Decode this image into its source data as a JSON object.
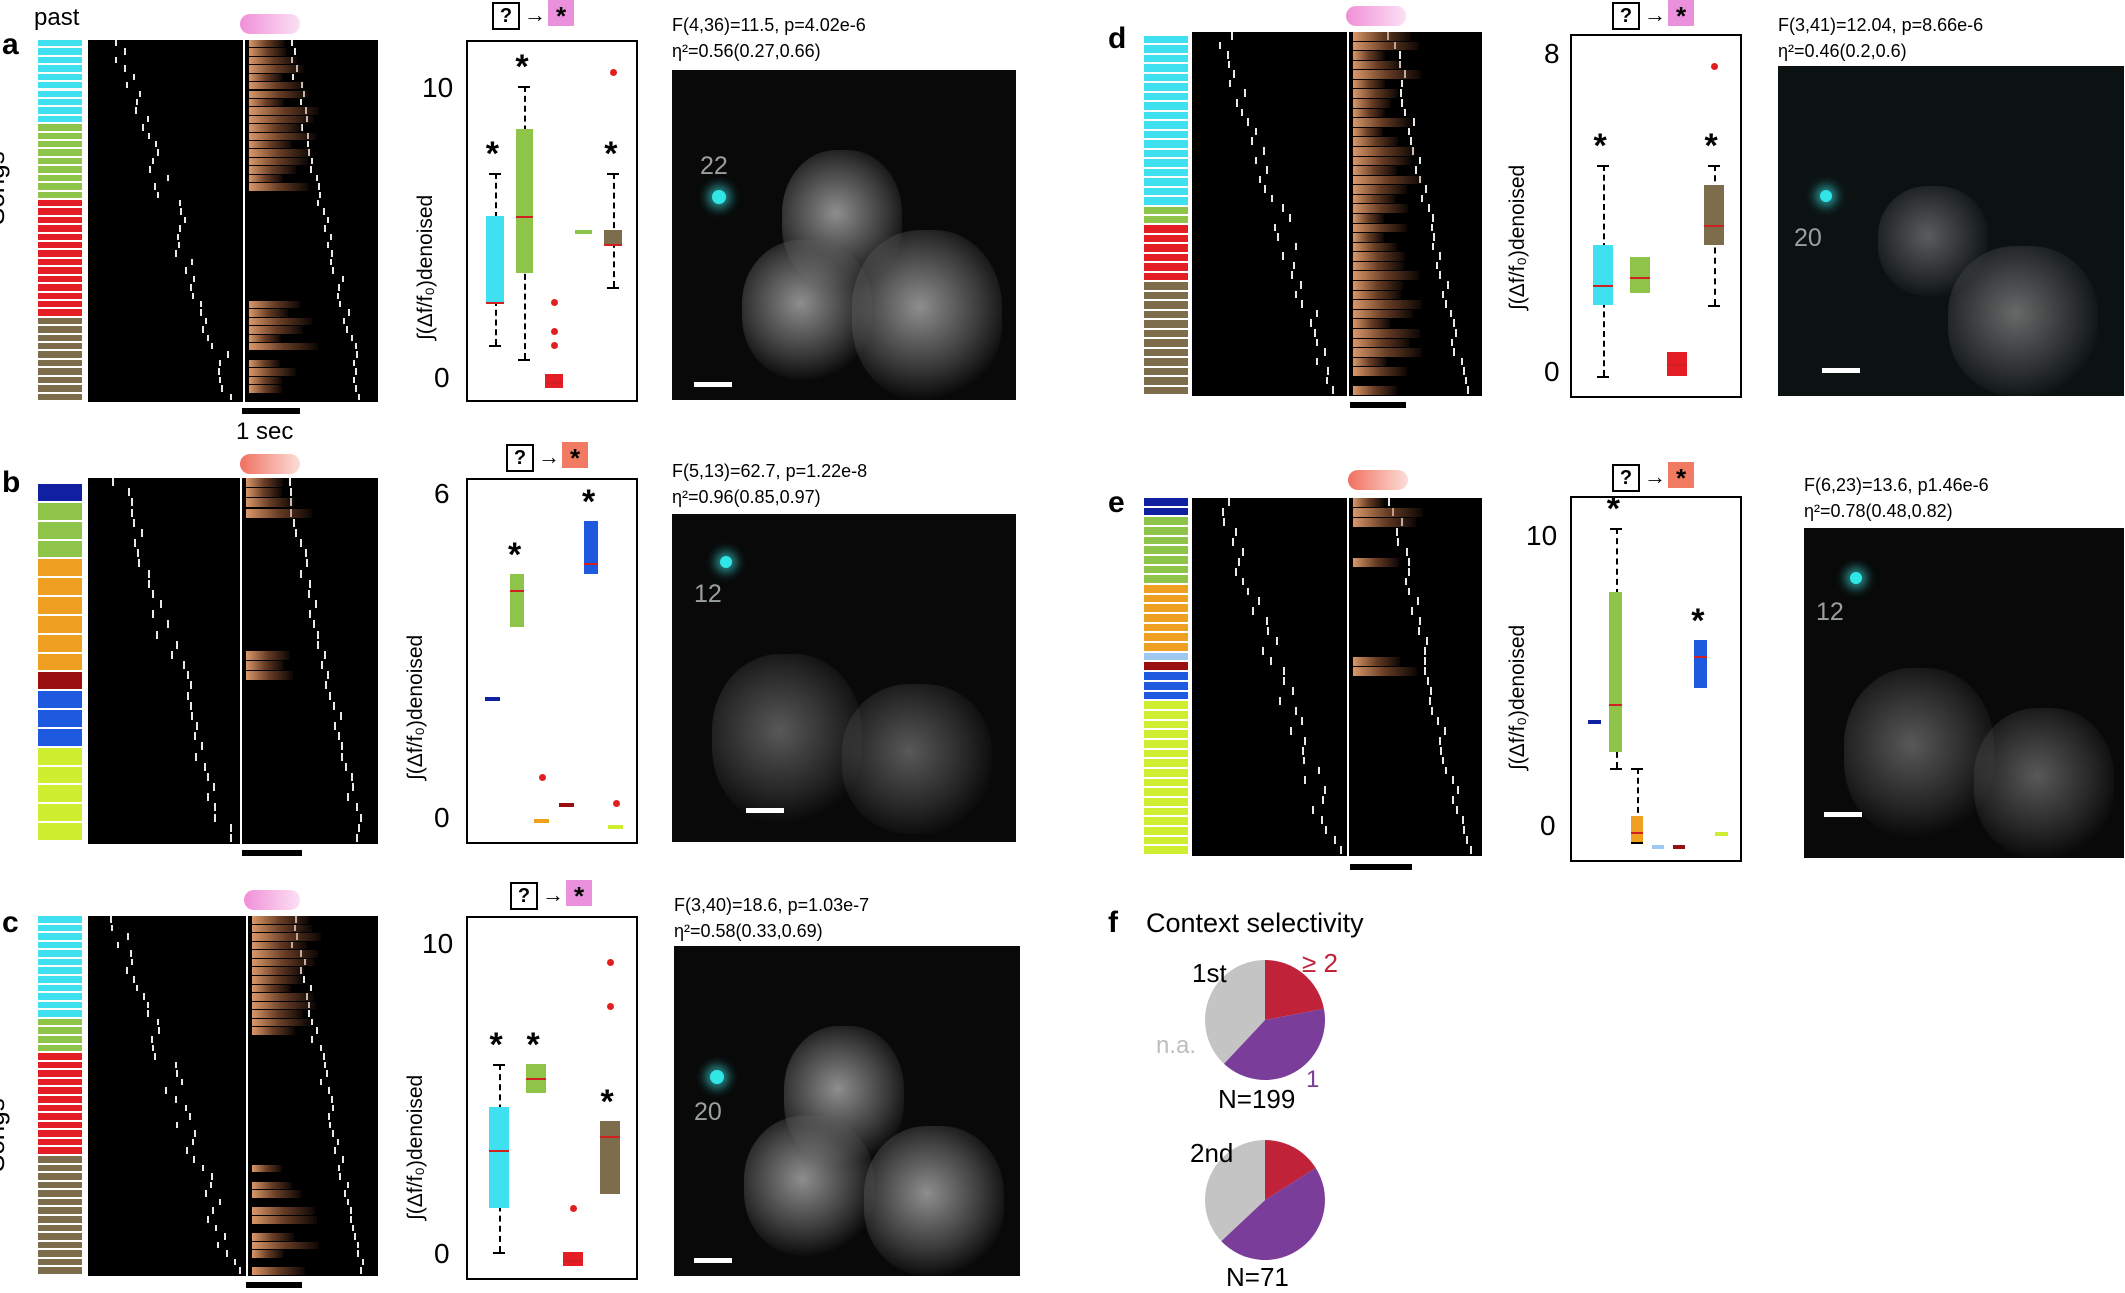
{
  "panels": {
    "a": {
      "label": "a",
      "past": "past",
      "songs": "Songs",
      "time_label": "1 sec",
      "stats1": "F(4,36)=11.5, p=4.02e-6",
      "stats2": "η²=0.56(0.27,0.66)",
      "yticks": [
        "10",
        "0"
      ],
      "ylabel": "∫(Δf/f₀)denoised",
      "cell": "22"
    },
    "b": {
      "label": "b",
      "stats1": "F(5,13)=62.7, p=1.22e-8",
      "stats2": "η²=0.96(0.85,0.97)",
      "yticks": [
        "6",
        "0"
      ],
      "ylabel": "∫(Δf/f₀)denoised",
      "cell": "12"
    },
    "c": {
      "label": "c",
      "songs": "Songs",
      "stats1": "F(3,40)=18.6, p=1.03e-7",
      "stats2": "η²=0.58(0.33,0.69)",
      "yticks": [
        "10",
        "0"
      ],
      "ylabel": "∫(Δf/f₀)denoised",
      "cell": "20"
    },
    "d": {
      "label": "d",
      "stats1": "F(3,41)=12.04, p=8.66e-6",
      "stats2": "η²=0.46(0.2,0.6)",
      "yticks": [
        "8",
        "0"
      ],
      "ylabel": "∫(Δf/f₀)denoised",
      "cell": "20"
    },
    "e": {
      "label": "e",
      "stats1": "F(6,23)=13.6, p1.46e-6",
      "stats2": "η²=0.78(0.48,0.82)",
      "yticks": [
        "10",
        "0"
      ],
      "ylabel": "∫(Δf/f₀)denoised",
      "cell": "12"
    },
    "f": {
      "label": "f",
      "title": "Context selectivity",
      "pie1_label": "1st",
      "pie2_label": "2nd",
      "ge2": "≥ 2",
      "one": "1",
      "na": "n.a.",
      "n1": "N=199",
      "n2": "N=71"
    }
  },
  "key": {
    "question": "?",
    "arrow": "→",
    "star": "*"
  },
  "colors": {
    "cyan": "#3fe0f0",
    "lightgreen": "#8fc44a",
    "red": "#e51e25",
    "brown": "#7d6d4d",
    "navy": "#1020a0",
    "orange": "#f0a020",
    "darkred": "#9a1010",
    "blue": "#1e5ae0",
    "lightblue": "#9ec8f0",
    "yellowgreen": "#d0ee30",
    "pie_red": "#c0223a",
    "pie_purple": "#7a3e9a",
    "pie_gray": "#c4c4c4"
  },
  "chart_data": [
    {
      "type": "box",
      "panel": "a",
      "ylim": [
        0,
        11
      ],
      "series": [
        {
          "color": "cyan",
          "q1": 3.0,
          "median": 3.0,
          "q3": 6.0,
          "whisk_lo": 1.5,
          "whisk_hi": 7.5,
          "significant": true
        },
        {
          "color": "lightgreen",
          "q1": 4.0,
          "median": 6.0,
          "q3": 9.0,
          "whisk_lo": 1.0,
          "whisk_hi": 10.5,
          "significant": true
        },
        {
          "color": "red",
          "q1": 0.0,
          "median": 0.2,
          "q3": 0.5,
          "outliers": [
            2,
            1.5,
            3
          ],
          "significant": false
        },
        {
          "color": "lightgreen",
          "median": 5.5,
          "significant": false
        },
        {
          "color": "brown",
          "q1": 5.0,
          "median": 5.0,
          "q3": 5.5,
          "whisk_lo": 3.5,
          "whisk_hi": 7.5,
          "outliers": [
            11
          ],
          "significant": true
        }
      ]
    },
    {
      "type": "box",
      "panel": "b",
      "ylim": [
        0,
        6
      ],
      "series": [
        {
          "color": "navy",
          "median": 2.5,
          "significant": false
        },
        {
          "color": "lightgreen",
          "q1": 3.8,
          "median": 4.5,
          "q3": 4.8,
          "significant": true
        },
        {
          "color": "orange",
          "median": 0.2,
          "outliers": [
            1
          ],
          "significant": false
        },
        {
          "color": "darkred",
          "median": 0.5,
          "significant": false
        },
        {
          "color": "blue",
          "q1": 4.8,
          "median": 5.0,
          "q3": 5.8,
          "significant": true
        },
        {
          "color": "yellowgreen",
          "median": 0.1,
          "outliers": [
            0.5
          ],
          "significant": false
        }
      ]
    },
    {
      "type": "box",
      "panel": "c",
      "ylim": [
        0,
        11
      ],
      "series": [
        {
          "color": "cyan",
          "q1": 2,
          "median": 4,
          "q3": 5.5,
          "whisk_lo": 0.5,
          "whisk_hi": 7,
          "significant": true
        },
        {
          "color": "lightgreen",
          "q1": 6,
          "median": 6.5,
          "q3": 7,
          "significant": true
        },
        {
          "color": "red",
          "q1": 0,
          "median": 0.2,
          "q3": 0.5,
          "outliers": [
            2
          ],
          "significant": false
        },
        {
          "color": "brown",
          "q1": 2.5,
          "median": 4.5,
          "q3": 5,
          "outliers": [
            9,
            10.5
          ],
          "significant": true
        }
      ]
    },
    {
      "type": "box",
      "panel": "d",
      "ylim": [
        0,
        8
      ],
      "series": [
        {
          "color": "cyan",
          "q1": 2,
          "median": 2.5,
          "q3": 3.5,
          "whisk_lo": 0.2,
          "whisk_hi": 5.5,
          "significant": true
        },
        {
          "color": "lightgreen",
          "q1": 2.3,
          "median": 2.7,
          "q3": 3.2,
          "significant": false
        },
        {
          "color": "red",
          "q1": 0.2,
          "median": 0.5,
          "q3": 0.8,
          "significant": false
        },
        {
          "color": "brown",
          "q1": 3.5,
          "median": 4,
          "q3": 5,
          "whisk_lo": 2,
          "whisk_hi": 5.5,
          "outliers": [
            8
          ],
          "significant": true
        }
      ]
    },
    {
      "type": "box",
      "panel": "e",
      "ylim": [
        0,
        10
      ],
      "series": [
        {
          "color": "navy",
          "median": 4,
          "significant": false
        },
        {
          "color": "lightgreen",
          "q1": 3,
          "median": 4.5,
          "q3": 8,
          "whisk_lo": 2.5,
          "whisk_hi": 10,
          "significant": true
        },
        {
          "color": "orange",
          "q1": 0.2,
          "median": 0.5,
          "q3": 1,
          "whisk_hi": 2.5,
          "significant": false
        },
        {
          "color": "lightblue",
          "median": 0.1,
          "significant": false
        },
        {
          "color": "darkred",
          "median": 0.1,
          "significant": false
        },
        {
          "color": "blue",
          "q1": 5,
          "median": 6,
          "q3": 6.5,
          "significant": true
        },
        {
          "color": "yellowgreen",
          "median": 0.5,
          "significant": false
        }
      ]
    },
    {
      "type": "pie",
      "panel": "f-1st",
      "N": 199,
      "slices": [
        {
          "label": "≥ 2",
          "color": "pie_red",
          "value": 0.22
        },
        {
          "label": "1",
          "color": "pie_purple",
          "value": 0.4
        },
        {
          "label": "n.a.",
          "color": "pie_gray",
          "value": 0.38
        }
      ]
    },
    {
      "type": "pie",
      "panel": "f-2nd",
      "N": 71,
      "slices": [
        {
          "label": "≥ 2",
          "color": "pie_red",
          "value": 0.16
        },
        {
          "label": "1",
          "color": "pie_purple",
          "value": 0.47
        },
        {
          "label": "n.a.",
          "color": "pie_gray",
          "value": 0.37
        }
      ]
    }
  ]
}
